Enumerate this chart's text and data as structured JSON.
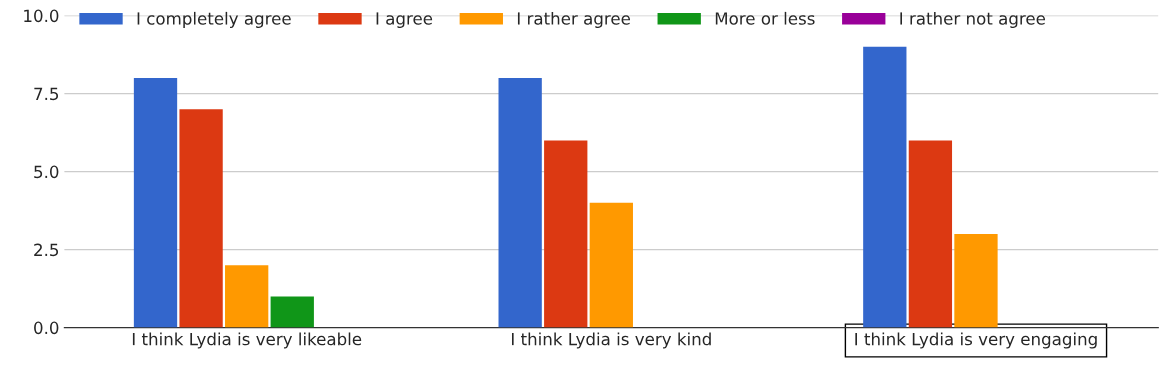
{
  "chart_data": {
    "type": "bar",
    "categories": [
      "I think Lydia is very likeable",
      "I think Lydia is very kind",
      "I think Lydia is very engaging"
    ],
    "series": [
      {
        "name": "I completely agree",
        "color": "#3366cc",
        "values": [
          8,
          8,
          9
        ]
      },
      {
        "name": "I agree",
        "color": "#dc3912",
        "values": [
          7,
          6,
          6
        ]
      },
      {
        "name": "I rather agree",
        "color": "#ff9900",
        "values": [
          2,
          4,
          3
        ]
      },
      {
        "name": "More or less",
        "color": "#109618",
        "values": [
          1,
          null,
          null
        ]
      },
      {
        "name": "I rather not agree",
        "color": "#990099",
        "values": [
          null,
          null,
          null
        ]
      }
    ],
    "ylim": [
      0,
      10
    ],
    "yticks": [
      {
        "value": 0,
        "label": "0.0"
      },
      {
        "value": 2.5,
        "label": "2.5"
      },
      {
        "value": 5,
        "label": "5.0"
      },
      {
        "value": 7.5,
        "label": "7.5"
      },
      {
        "value": 10,
        "label": "10.0"
      }
    ],
    "grid": "y",
    "legend": "top left"
  }
}
